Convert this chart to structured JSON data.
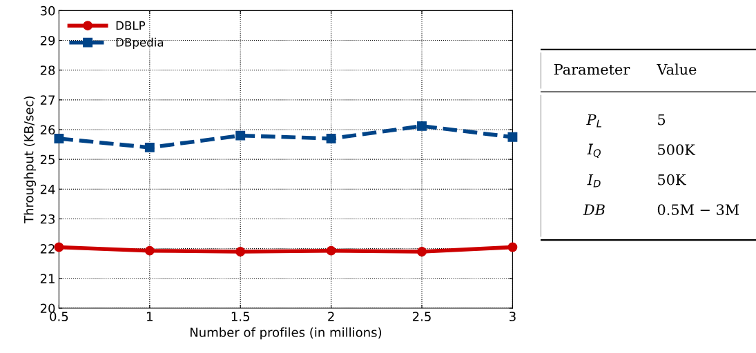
{
  "chart_data": [
    {
      "type": "line",
      "xlabel": "Number of profiles (in millions)",
      "ylabel": "Throughput (KB/sec)",
      "x": [
        0.5,
        1,
        1.5,
        2,
        2.5,
        3
      ],
      "series": [
        {
          "name": "DBLP",
          "color": "#cc0000",
          "marker": "circle",
          "line_style": "solid",
          "values": [
            22.05,
            21.93,
            21.9,
            21.93,
            21.9,
            22.05
          ]
        },
        {
          "name": "DBpedia",
          "color": "#004488",
          "marker": "square",
          "line_style": "dashed",
          "values": [
            25.7,
            25.4,
            25.8,
            25.7,
            26.12,
            25.75
          ]
        }
      ],
      "xlim": [
        0.5,
        3
      ],
      "xticks": [
        0.5,
        1,
        1.5,
        2,
        2.5,
        3
      ],
      "ylim": [
        20,
        30
      ],
      "yticks": [
        20,
        21,
        22,
        23,
        24,
        25,
        26,
        27,
        28,
        29,
        30
      ],
      "grid": true,
      "legend": "top left"
    },
    {
      "type": "other",
      "annotations": [
        "Parameter",
        "Value",
        "P$_{L}$",
        "5",
        "I$_{Q}$",
        "500K",
        "I$_{D}$",
        "50K",
        "DB",
        "0.5M − 3M"
      ]
    }
  ]
}
